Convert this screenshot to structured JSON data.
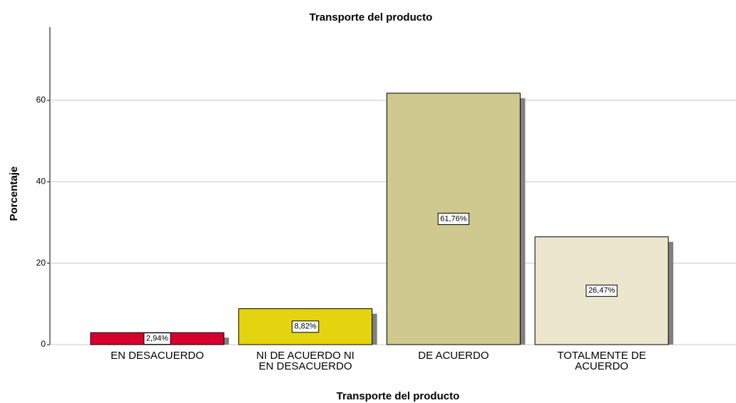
{
  "chart_data": {
    "type": "bar",
    "title": "Transporte del producto",
    "x_label": "Transporte del producto",
    "y_label": "Porcentaje",
    "categories": [
      "EN DESACUERDO",
      "NI DE ACUERDO NI EN DESACUERDO",
      "DE ACUERDO",
      "TOTALMENTE DE ACUERDO"
    ],
    "values": [
      2.94,
      8.82,
      61.76,
      26.47
    ],
    "value_labels": [
      "2,94%",
      "8,82%",
      "61,76%",
      "26,47%"
    ],
    "colors": [
      "#d6002f",
      "#e3d40f",
      "#cfc98f",
      "#ece6cf"
    ],
    "ylim": [
      0,
      78
    ],
    "yticks": [
      0,
      20,
      40,
      60
    ],
    "grid": true
  }
}
